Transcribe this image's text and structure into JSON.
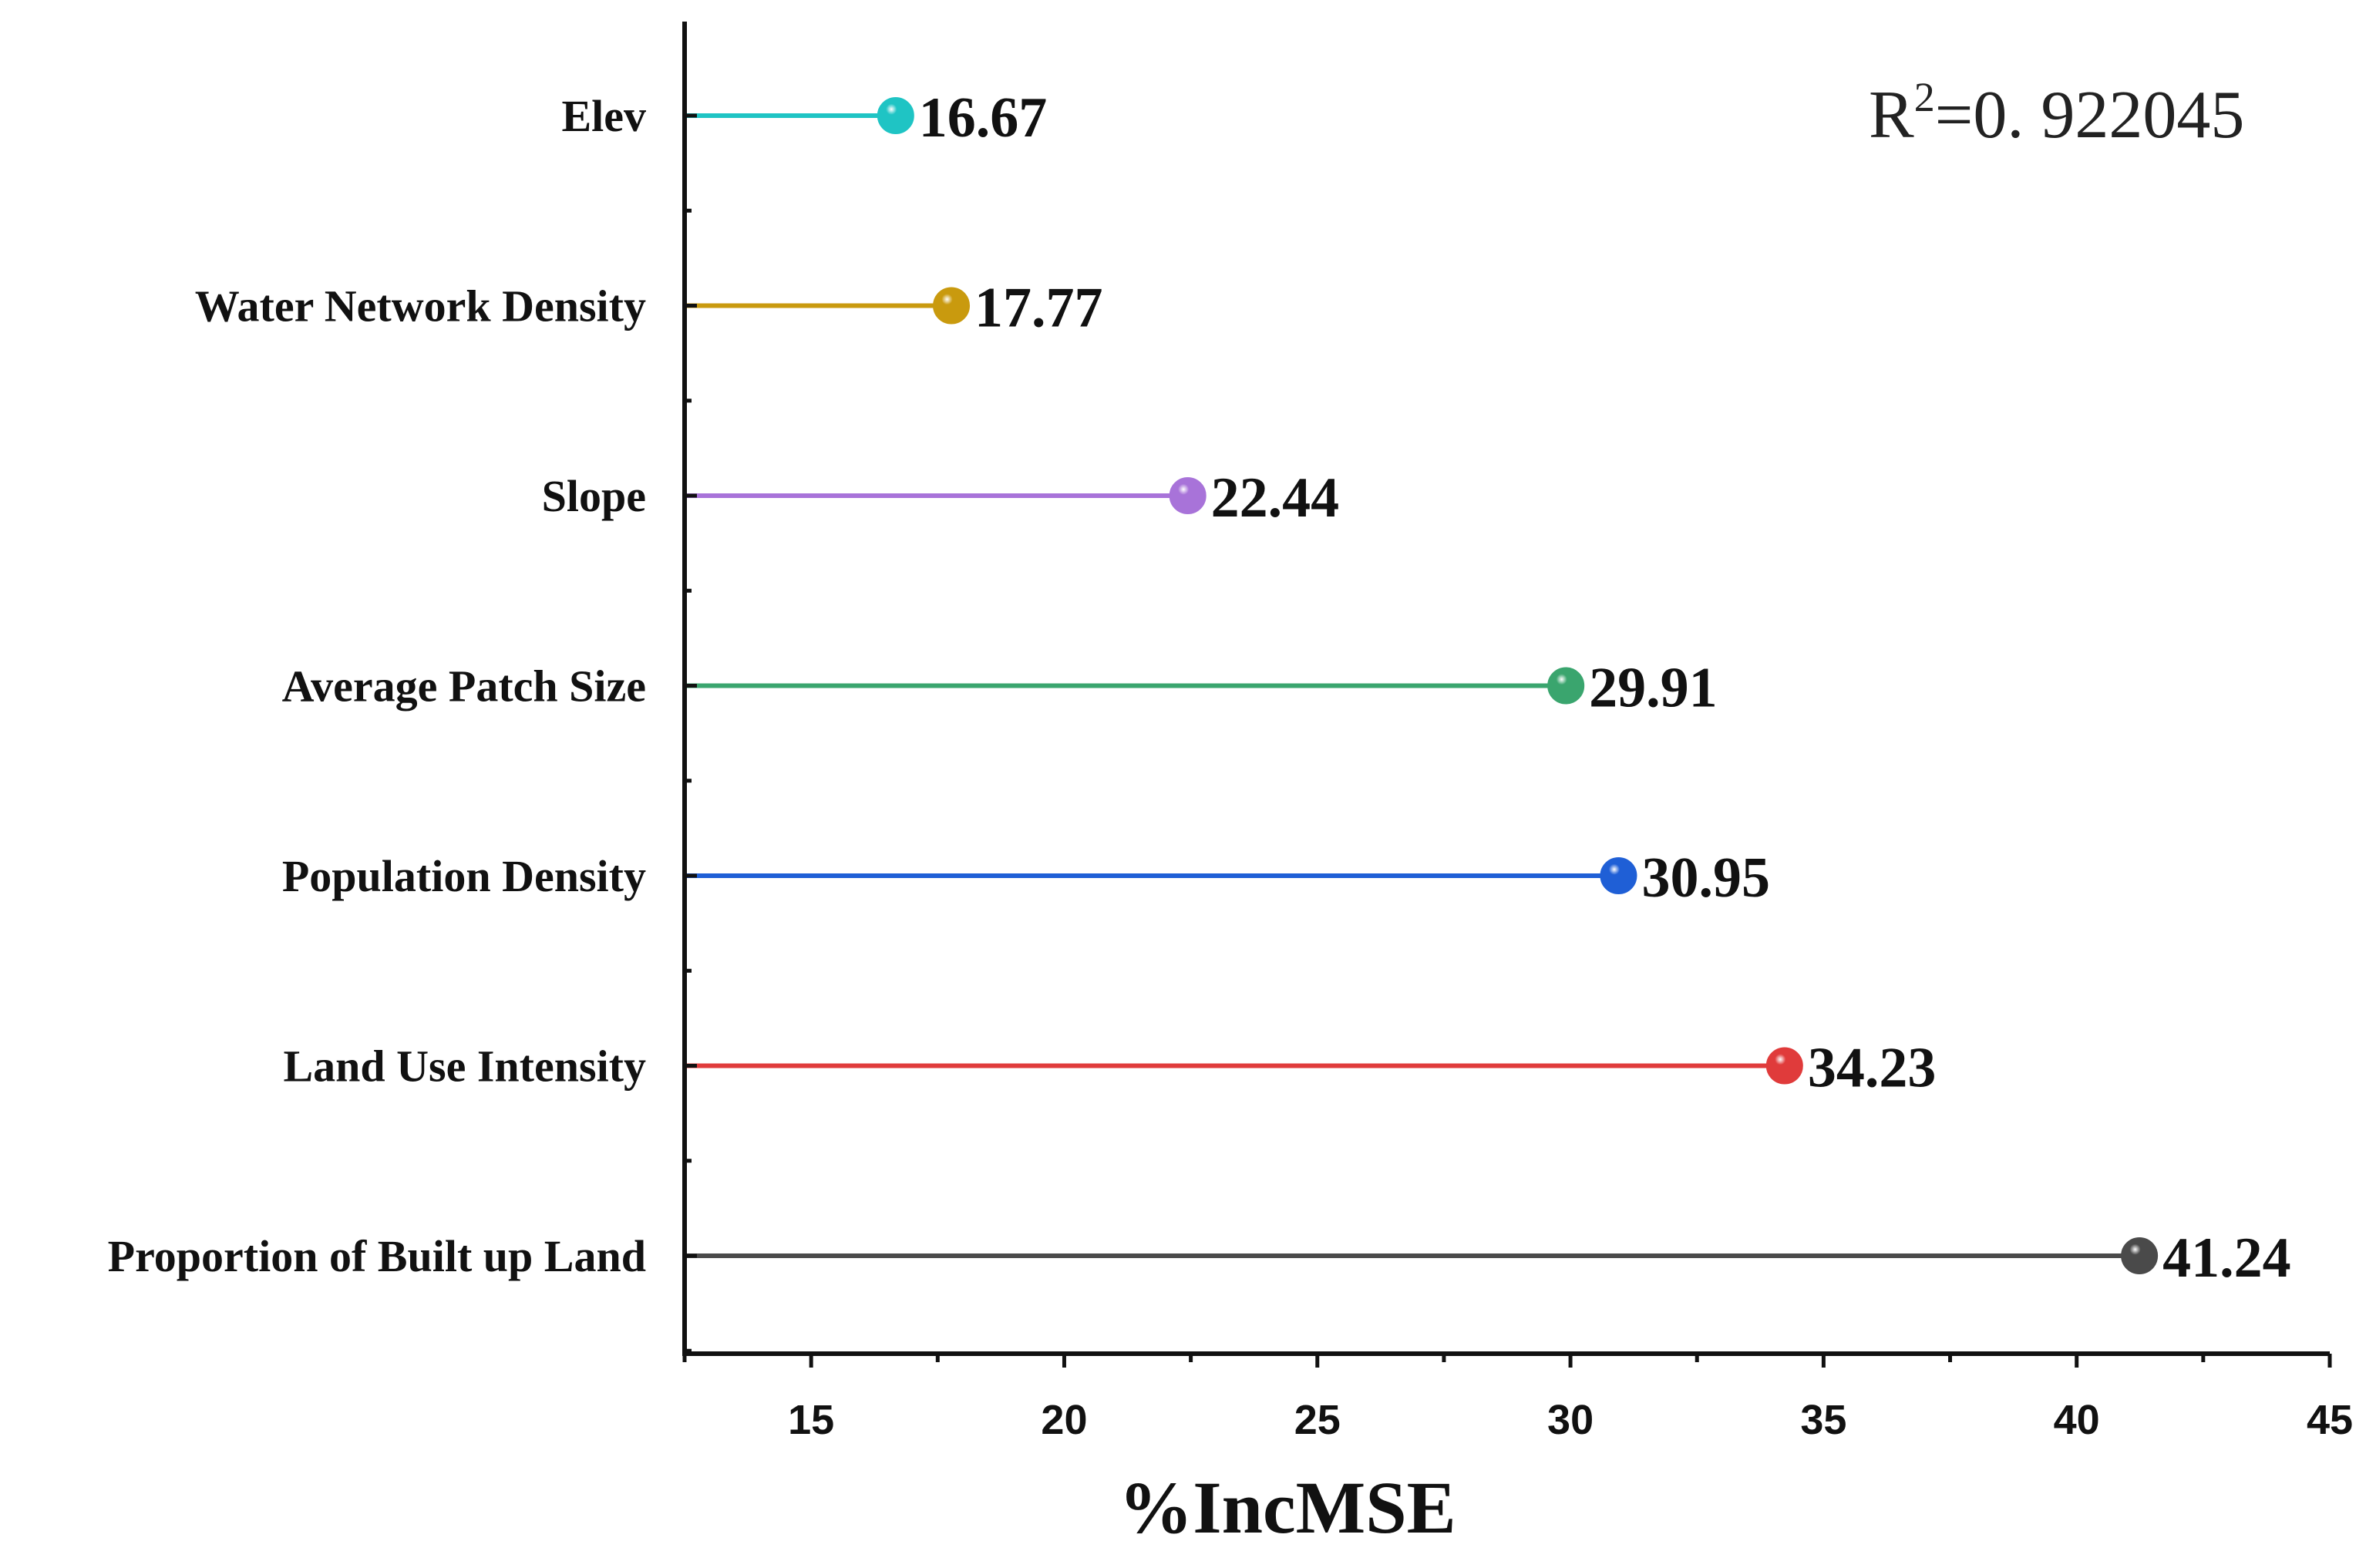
{
  "chart_data": {
    "type": "lollipop",
    "categories": [
      "Elev",
      "Water Network Density",
      "Slope",
      "Average Patch Size",
      "Population Density",
      "Land Use Intensity",
      "Proportion of Built up Land"
    ],
    "values": [
      16.67,
      17.77,
      22.44,
      29.91,
      30.95,
      34.23,
      41.24
    ],
    "value_labels": [
      "16.67",
      "17.77",
      "22.44",
      "29.91",
      "30.95",
      "34.23",
      "41.24"
    ],
    "colors": [
      "#1fc4c4",
      "#c99a0e",
      "#a873d9",
      "#3aa56e",
      "#1f5fd6",
      "#e03b3b",
      "#4a4a4a"
    ],
    "xlabel": "%IncMSE",
    "ylabel": "",
    "xlim": [
      12.5,
      45
    ],
    "xticks": [
      15,
      20,
      25,
      30,
      35,
      40,
      45
    ],
    "xtick_labels": [
      "15",
      "20",
      "25",
      "30",
      "35",
      "40",
      "45"
    ],
    "annotation": {
      "prefix": "R",
      "superscript": "2",
      "value": "=0. 922045"
    },
    "grid": false,
    "legend": "none"
  }
}
